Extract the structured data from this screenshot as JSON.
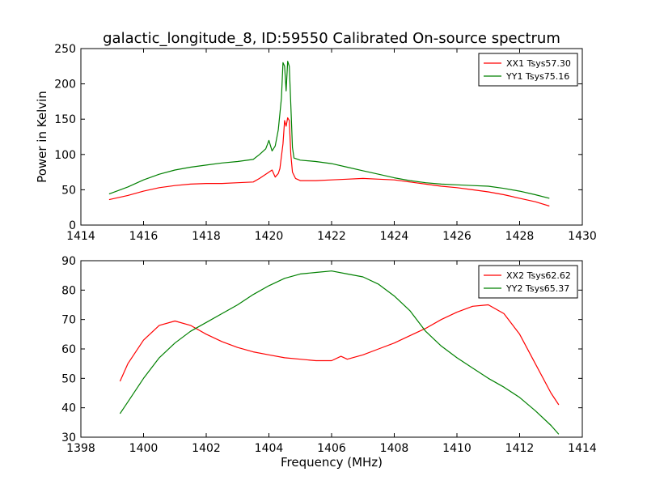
{
  "figure": {
    "title": "galactic_longitude_8, ID:59550 Calibrated On-source spectrum"
  },
  "chart_data": [
    {
      "type": "line",
      "title": "galactic_longitude_8, ID:59550 Calibrated On-source spectrum",
      "xlabel": "",
      "ylabel": "Power in Kelvin",
      "xlim": [
        1414,
        1430
      ],
      "ylim": [
        0,
        250
      ],
      "xticks": [
        1414,
        1416,
        1418,
        1420,
        1422,
        1424,
        1426,
        1428,
        1430
      ],
      "yticks": [
        0,
        50,
        100,
        150,
        200,
        250
      ],
      "grid": false,
      "legend_position": "top-right",
      "series": [
        {
          "name": "XX1 Tsys57.30",
          "color": "#ff0000",
          "x": [
            1414.9,
            1415.5,
            1416.0,
            1416.5,
            1417.0,
            1417.5,
            1418.0,
            1418.5,
            1419.0,
            1419.5,
            1419.7,
            1419.9,
            1420.1,
            1420.2,
            1420.3,
            1420.35,
            1420.45,
            1420.5,
            1420.55,
            1420.6,
            1420.65,
            1420.7,
            1420.75,
            1420.85,
            1421.0,
            1421.5,
            1422.0,
            1422.5,
            1423.0,
            1423.5,
            1424.0,
            1424.5,
            1425.0,
            1425.5,
            1426.0,
            1426.5,
            1427.0,
            1427.5,
            1428.0,
            1428.5,
            1428.95
          ],
          "values": [
            36,
            42,
            48,
            53,
            56,
            58,
            59,
            59,
            60,
            61,
            66,
            72,
            78,
            68,
            73,
            80,
            115,
            148,
            140,
            152,
            148,
            100,
            75,
            66,
            63,
            63,
            64,
            65,
            66,
            65,
            64,
            61,
            58,
            55,
            53,
            50,
            47,
            43,
            38,
            33,
            27
          ]
        },
        {
          "name": "YY1 Tsys75.16",
          "color": "#008000",
          "x": [
            1414.9,
            1415.5,
            1416.0,
            1416.5,
            1417.0,
            1417.5,
            1418.0,
            1418.5,
            1419.0,
            1419.5,
            1419.7,
            1419.9,
            1420.0,
            1420.1,
            1420.2,
            1420.3,
            1420.4,
            1420.45,
            1420.5,
            1420.55,
            1420.6,
            1420.65,
            1420.7,
            1420.75,
            1420.8,
            1421.0,
            1421.5,
            1422.0,
            1422.5,
            1423.0,
            1423.5,
            1424.0,
            1424.5,
            1425.0,
            1425.5,
            1426.0,
            1426.5,
            1427.0,
            1427.5,
            1428.0,
            1428.5,
            1428.95
          ],
          "values": [
            44,
            54,
            64,
            72,
            78,
            82,
            85,
            88,
            90,
            93,
            100,
            108,
            120,
            105,
            112,
            135,
            180,
            230,
            225,
            190,
            232,
            225,
            170,
            110,
            95,
            92,
            90,
            87,
            82,
            77,
            72,
            67,
            63,
            60,
            58,
            57,
            56,
            55,
            52,
            48,
            43,
            38
          ]
        }
      ]
    },
    {
      "type": "line",
      "title": "",
      "xlabel": "Frequency (MHz)",
      "ylabel": "",
      "xlim": [
        1398,
        1414
      ],
      "ylim": [
        30,
        90
      ],
      "xticks": [
        1398,
        1400,
        1402,
        1404,
        1406,
        1408,
        1410,
        1412,
        1414
      ],
      "yticks": [
        30,
        40,
        50,
        60,
        70,
        80,
        90
      ],
      "grid": false,
      "legend_position": "top-right",
      "series": [
        {
          "name": "XX2 Tsys62.62",
          "color": "#ff0000",
          "x": [
            1399.25,
            1399.5,
            1400.0,
            1400.5,
            1401.0,
            1401.5,
            1402.0,
            1402.5,
            1403.0,
            1403.5,
            1404.0,
            1404.5,
            1405.0,
            1405.5,
            1406.0,
            1406.3,
            1406.5,
            1407.0,
            1407.5,
            1408.0,
            1408.5,
            1409.0,
            1409.5,
            1410.0,
            1410.5,
            1411.0,
            1411.5,
            1412.0,
            1412.5,
            1413.0,
            1413.25
          ],
          "values": [
            49,
            55,
            63,
            68,
            69.5,
            68,
            65,
            62.5,
            60.5,
            59,
            58,
            57,
            56.5,
            56,
            56,
            57.5,
            56.5,
            58,
            60,
            62,
            64.5,
            67,
            70,
            72.5,
            74.5,
            75,
            72,
            65,
            55,
            45,
            41
          ]
        },
        {
          "name": "YY2 Tsys65.37",
          "color": "#008000",
          "x": [
            1399.25,
            1399.5,
            1400.0,
            1400.5,
            1401.0,
            1401.5,
            1402.0,
            1402.5,
            1403.0,
            1403.5,
            1404.0,
            1404.5,
            1405.0,
            1405.5,
            1406.0,
            1406.5,
            1407.0,
            1407.5,
            1408.0,
            1408.5,
            1409.0,
            1409.5,
            1410.0,
            1410.5,
            1411.0,
            1411.5,
            1412.0,
            1412.5,
            1413.0,
            1413.25
          ],
          "values": [
            38,
            42,
            50,
            57,
            62,
            66,
            69,
            72,
            75,
            78.5,
            81.5,
            84,
            85.5,
            86,
            86.5,
            85.5,
            84.5,
            82,
            78,
            73,
            66,
            61,
            57,
            53.5,
            50,
            47,
            43.5,
            39,
            34,
            31
          ]
        }
      ]
    }
  ]
}
